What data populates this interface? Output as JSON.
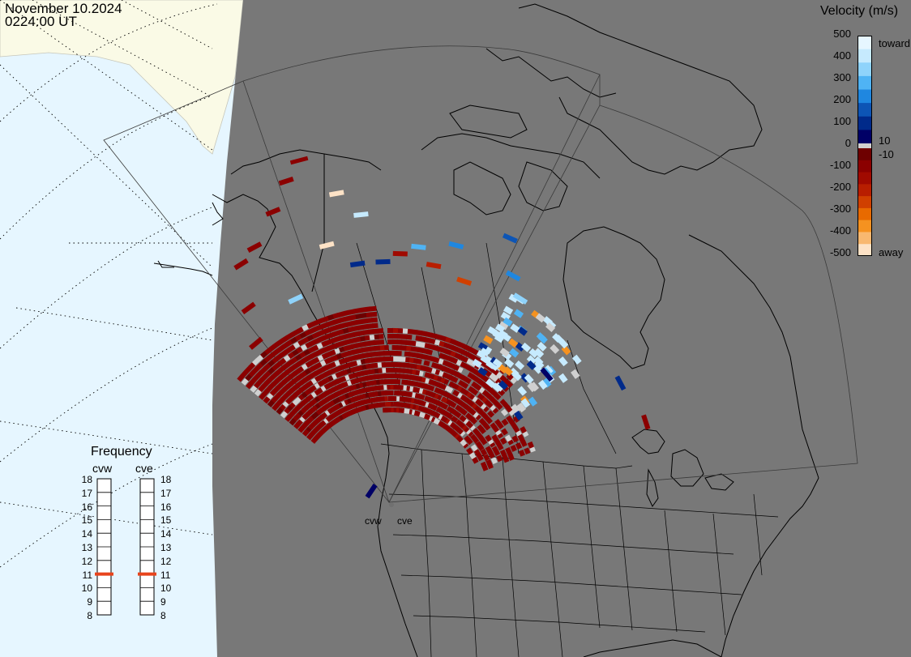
{
  "header": {
    "date": "November 10.2024",
    "time": "0224:00 UT"
  },
  "velocity_scale": {
    "title": "Velocity (m/s)",
    "ticks": [
      "500",
      "400",
      "300",
      "200",
      "100",
      "0",
      "-100",
      "-200",
      "-300",
      "-400",
      "-500"
    ],
    "inner_ticks": [
      "10",
      "-10"
    ],
    "toward_label": "toward",
    "away_label": "away",
    "colors_toward": [
      "#e6f6ff",
      "#c6eafe",
      "#8fd3fb",
      "#4fb3f4",
      "#1f87e0",
      "#0d55b5",
      "#002a8a",
      "#000066"
    ],
    "colors_away": [
      "#6e0000",
      "#8b0000",
      "#a00a00",
      "#b81e00",
      "#d04000",
      "#e86a00",
      "#f59220",
      "#f8b870",
      "#fde2c6"
    ]
  },
  "frequency": {
    "title": "Frequency",
    "radars": [
      {
        "label": "cvw",
        "value": 11
      },
      {
        "label": "cve",
        "value": 11
      }
    ],
    "scale": [
      "18",
      "17",
      "16",
      "15",
      "14",
      "13",
      "12",
      "11",
      "10",
      "9",
      "8"
    ],
    "marker_color": "#e8441c"
  },
  "sites": {
    "west": "cvw",
    "east": "cve"
  },
  "colors": {
    "space": "#e6f6ff",
    "land_day": "#fafae6",
    "night": "#787878",
    "gray_scatter": "#d0d0d0"
  }
}
